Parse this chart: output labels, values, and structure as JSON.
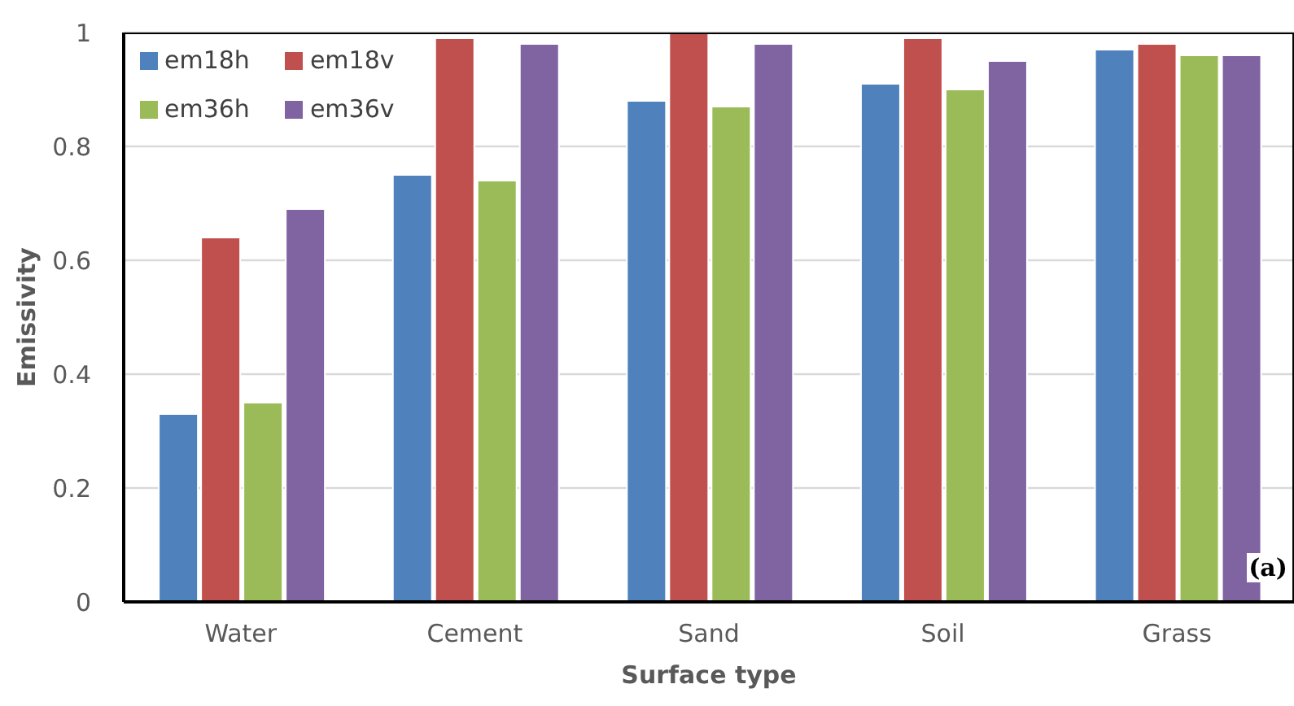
{
  "chart_data": {
    "type": "bar",
    "xlabel": "Surface type",
    "ylabel": "Emissivity",
    "categories": [
      "Water",
      "Cement",
      "Sand",
      "Soil",
      "Grass"
    ],
    "series": [
      {
        "name": "em18h",
        "color": "#4f81bd",
        "values": [
          0.33,
          0.75,
          0.88,
          0.91,
          0.97
        ]
      },
      {
        "name": "em18v",
        "color": "#c0504d",
        "values": [
          0.64,
          0.99,
          1.0,
          0.99,
          0.98
        ]
      },
      {
        "name": "em36h",
        "color": "#9bbb59",
        "values": [
          0.35,
          0.74,
          0.87,
          0.9,
          0.96
        ]
      },
      {
        "name": "em36v",
        "color": "#8064a2",
        "values": [
          0.69,
          0.98,
          0.98,
          0.95,
          0.96
        ]
      }
    ],
    "ylim": [
      0,
      1
    ],
    "yticks": [
      0,
      0.2,
      0.4,
      0.6,
      0.8,
      1
    ],
    "grid": "y",
    "legend": "top left",
    "annotations": [
      "(a)"
    ]
  }
}
